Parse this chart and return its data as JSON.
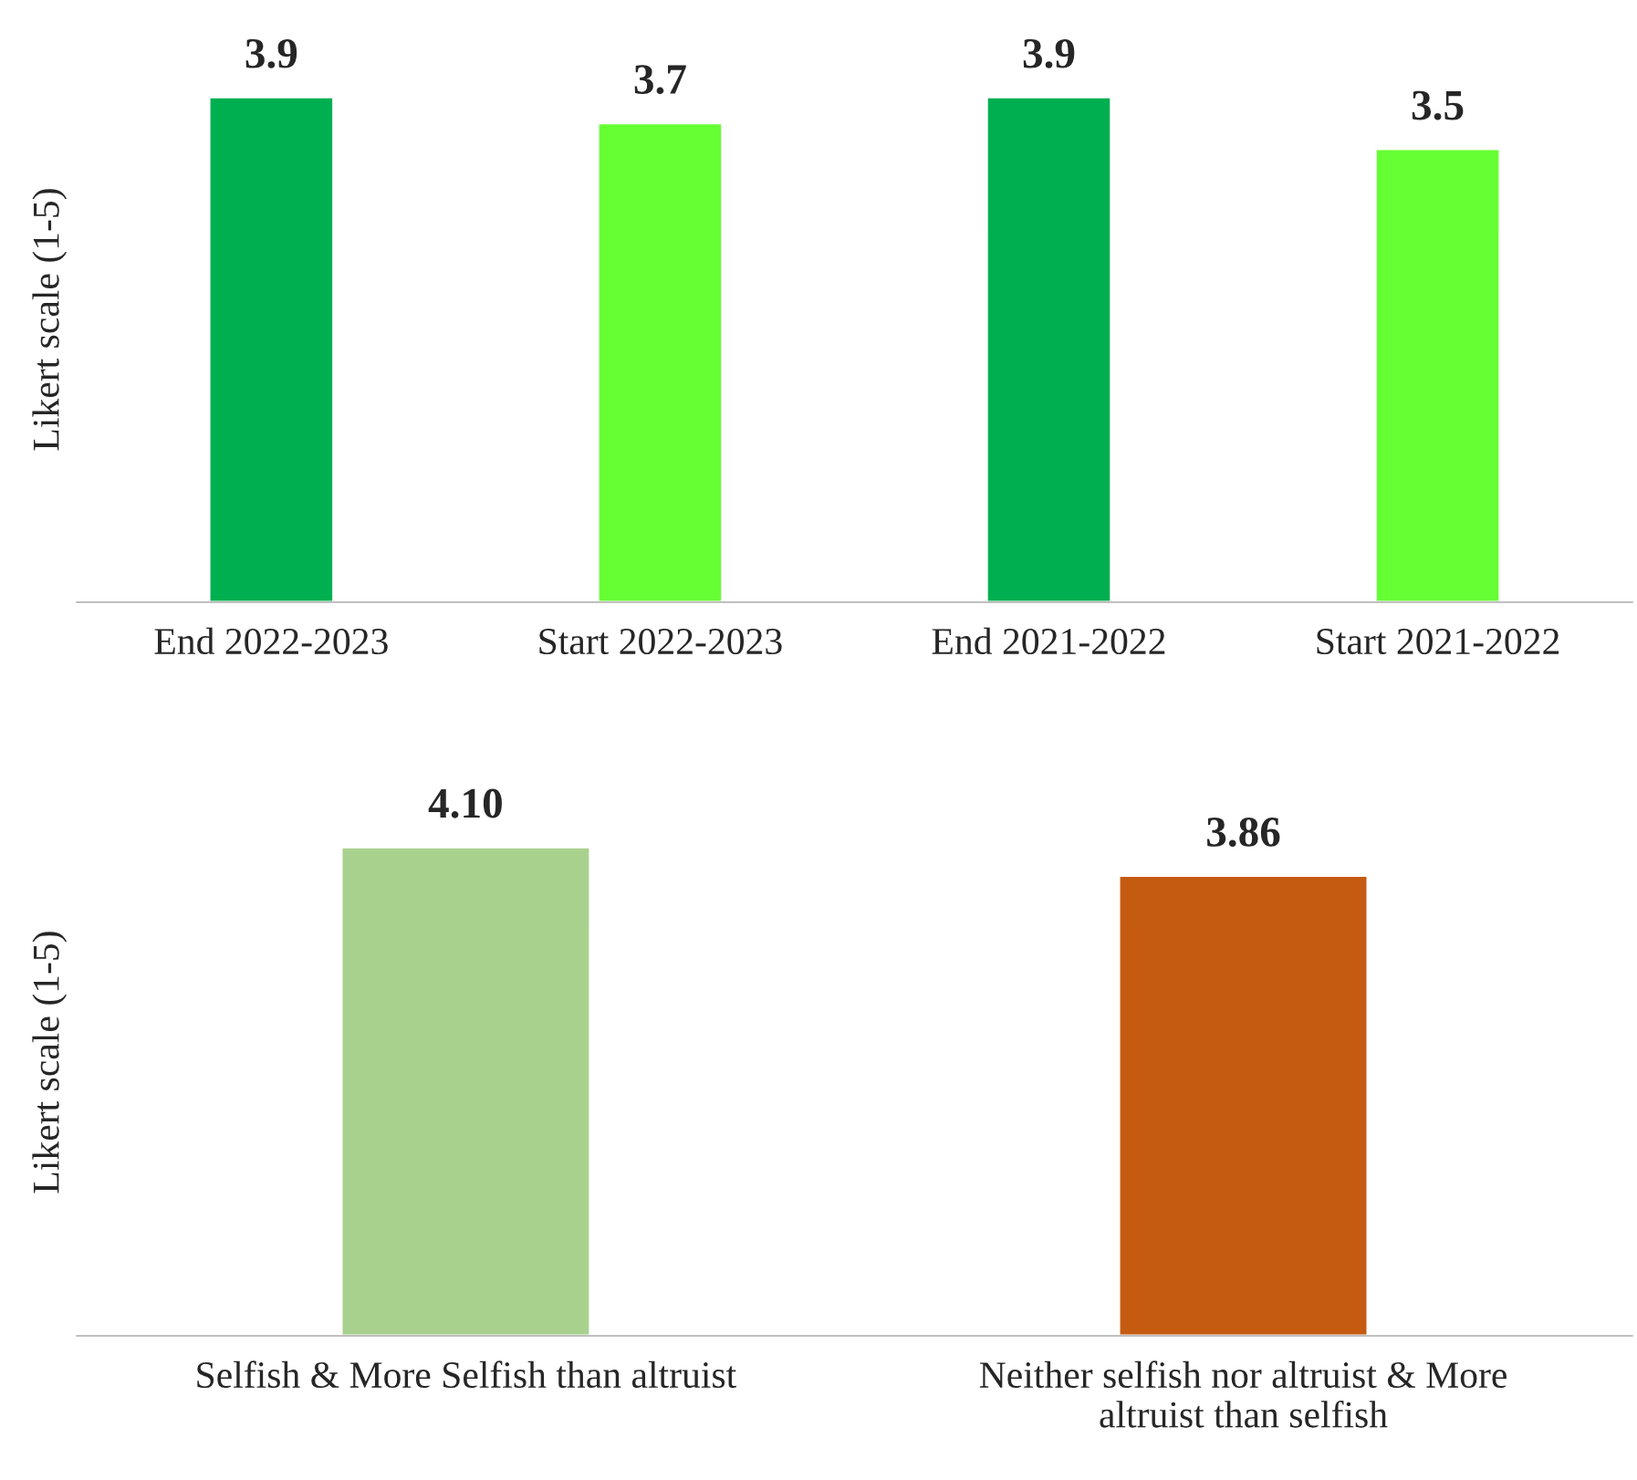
{
  "chart_data": [
    {
      "type": "bar",
      "ylabel": "Likert scale (1-5)",
      "categories": [
        "End 2022-2023",
        "Start 2022-2023",
        "End 2021-2022",
        "Start 2021-2022"
      ],
      "values": [
        3.9,
        3.7,
        3.9,
        3.5
      ],
      "colors": [
        "#00b050",
        "#66ff33",
        "#00b050",
        "#66ff33"
      ],
      "data_labels": true,
      "value_labels": [
        "3.9",
        "3.7",
        "3.9",
        "3.5"
      ],
      "grid": false,
      "legend": false
    },
    {
      "type": "bar",
      "ylabel": "Likert scale (1-5)",
      "categories": [
        "Selfish & More Selfish than altruist",
        "Neither selfish nor altruist & More\naltruist than selfish"
      ],
      "values": [
        4.1,
        3.86
      ],
      "colors": [
        "#a9d18e",
        "#c55a11"
      ],
      "data_labels": true,
      "value_labels": [
        "4.10",
        "3.86"
      ],
      "grid": false,
      "legend": false
    }
  ]
}
